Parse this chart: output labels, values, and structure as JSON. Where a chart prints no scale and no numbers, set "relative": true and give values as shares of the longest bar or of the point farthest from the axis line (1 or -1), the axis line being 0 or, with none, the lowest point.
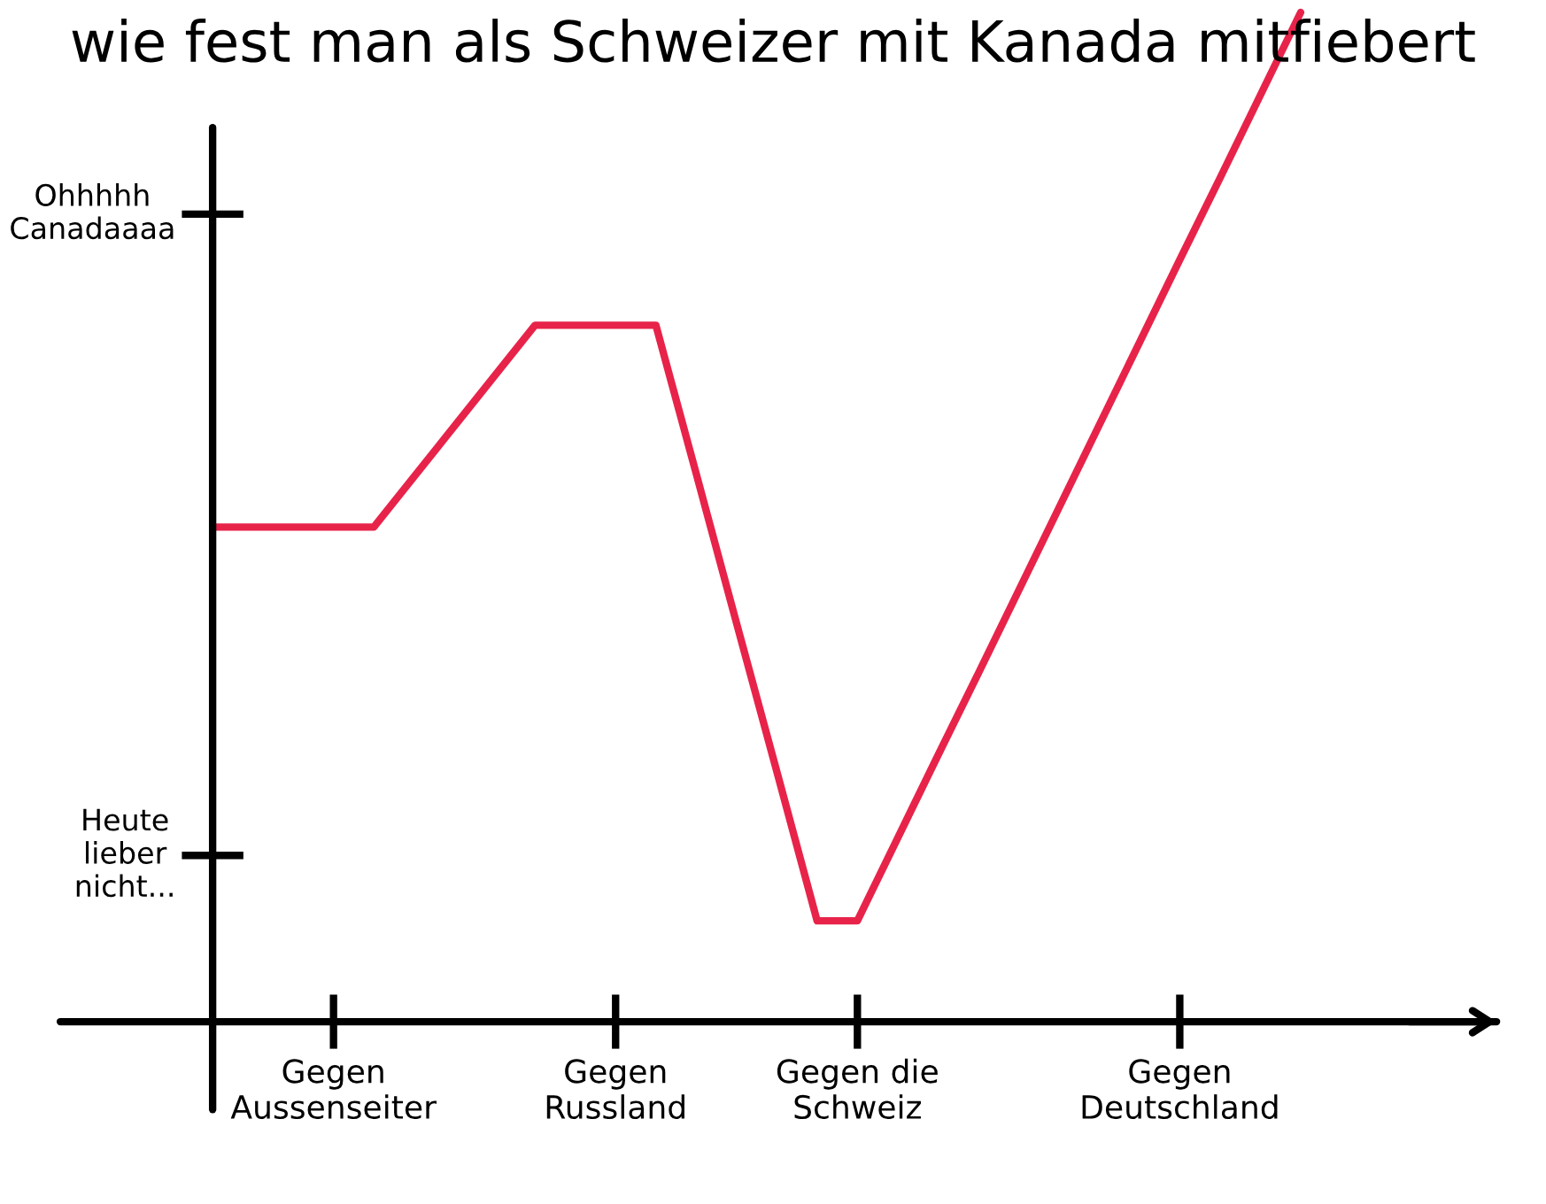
{
  "chart_data": {
    "type": "line",
    "title": "wie fest man als Schweizer mit Kanada mitfiebert",
    "relative": true,
    "categories": [
      null,
      null,
      null,
      "Gegen\nAussenseiter",
      null,
      null,
      null,
      null,
      null,
      null,
      "Gegen\nRussland",
      null,
      null,
      null,
      null,
      null,
      "Gegen die\nSchweiz",
      null,
      null,
      null,
      null,
      null,
      null,
      null,
      "Gegen\nDeutschland",
      null,
      null,
      null
    ],
    "series": [
      {
        "color": "#e8234a",
        "values": [
          0.49,
          0.49,
          0.49,
          0.49,
          0.49,
          0.54,
          0.59,
          0.64,
          0.69,
          0.69,
          0.69,
          0.69,
          0.543,
          0.395,
          0.248,
          0.1,
          0.1,
          0.182,
          0.264,
          0.345,
          0.427,
          0.509,
          0.591,
          0.673,
          0.755,
          0.836,
          0.918,
          1.0
        ]
      }
    ],
    "annotations": [
      "Ohhhhh\nCanadaaaa",
      "Heute\nlieber\nnicht..."
    ],
    "line_style": "solid"
  }
}
